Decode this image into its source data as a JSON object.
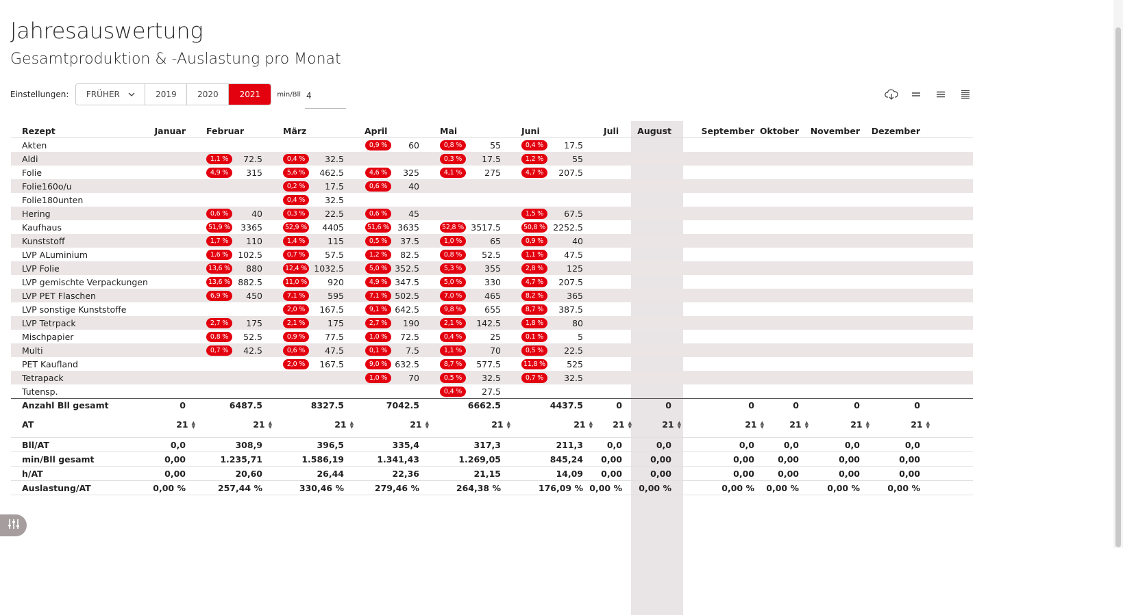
{
  "title": "Jahresauswertung",
  "subtitle": "Gesamtproduktion & -Auslastung pro Monat",
  "settings": {
    "label": "Einstellungen:",
    "dropdown_value": "FRÜHER",
    "years": [
      "2019",
      "2020",
      "2021"
    ],
    "active_year": "2021",
    "min_label": "min/Bll",
    "min_value": "4"
  },
  "icons": [
    "cloud-download-icon",
    "density-compact-icon",
    "density-standard-icon",
    "density-comfortable-icon",
    "tune-icon"
  ],
  "colors": {
    "accent": "#e3000f",
    "stripe": "#ebe5e6",
    "current_month": "#e9e4e5"
  },
  "table": {
    "header_label": "Rezept",
    "months": [
      "Januar",
      "Februar",
      "März",
      "April",
      "Mai",
      "Juni",
      "Juli",
      "August",
      "September",
      "Oktober",
      "November",
      "Dezember"
    ],
    "rows": [
      {
        "name": "Akten",
        "cells": [
          null,
          null,
          null,
          {
            "p": "0,9 %",
            "v": "60"
          },
          {
            "p": "0,8 %",
            "v": "55"
          },
          {
            "p": "0,4 %",
            "v": "17.5"
          }
        ]
      },
      {
        "name": "Aldi",
        "cells": [
          null,
          {
            "p": "1,1 %",
            "v": "72.5"
          },
          {
            "p": "0,4 %",
            "v": "32.5"
          },
          null,
          {
            "p": "0,3 %",
            "v": "17.5"
          },
          {
            "p": "1,2 %",
            "v": "55"
          }
        ]
      },
      {
        "name": "Folie",
        "cells": [
          null,
          {
            "p": "4,9 %",
            "v": "315"
          },
          {
            "p": "5,6 %",
            "v": "462.5"
          },
          {
            "p": "4,6 %",
            "v": "325"
          },
          {
            "p": "4,1 %",
            "v": "275"
          },
          {
            "p": "4,7 %",
            "v": "207.5"
          }
        ]
      },
      {
        "name": "Folie160o/u",
        "cells": [
          null,
          null,
          {
            "p": "0,2 %",
            "v": "17.5"
          },
          {
            "p": "0,6 %",
            "v": "40"
          },
          null,
          null
        ]
      },
      {
        "name": "Folie180unten",
        "cells": [
          null,
          null,
          {
            "p": "0,4 %",
            "v": "32.5"
          },
          null,
          null,
          null
        ]
      },
      {
        "name": "Hering",
        "cells": [
          null,
          {
            "p": "0,6 %",
            "v": "40"
          },
          {
            "p": "0,3 %",
            "v": "22.5"
          },
          {
            "p": "0,6 %",
            "v": "45"
          },
          null,
          {
            "p": "1,5 %",
            "v": "67.5"
          }
        ]
      },
      {
        "name": "Kaufhaus",
        "cells": [
          null,
          {
            "p": "51,9 %",
            "v": "3365"
          },
          {
            "p": "52,9 %",
            "v": "4405"
          },
          {
            "p": "51,6 %",
            "v": "3635"
          },
          {
            "p": "52,8 %",
            "v": "3517.5"
          },
          {
            "p": "50,8 %",
            "v": "2252.5"
          }
        ]
      },
      {
        "name": "Kunststoff",
        "cells": [
          null,
          {
            "p": "1,7 %",
            "v": "110"
          },
          {
            "p": "1,4 %",
            "v": "115"
          },
          {
            "p": "0,5 %",
            "v": "37.5"
          },
          {
            "p": "1,0 %",
            "v": "65"
          },
          {
            "p": "0,9 %",
            "v": "40"
          }
        ]
      },
      {
        "name": "LVP ALuminium",
        "cells": [
          null,
          {
            "p": "1,6 %",
            "v": "102.5"
          },
          {
            "p": "0,7 %",
            "v": "57.5"
          },
          {
            "p": "1,2 %",
            "v": "82.5"
          },
          {
            "p": "0,8 %",
            "v": "52.5"
          },
          {
            "p": "1,1 %",
            "v": "47.5"
          }
        ]
      },
      {
        "name": "LVP Folie",
        "cells": [
          null,
          {
            "p": "13,6 %",
            "v": "880"
          },
          {
            "p": "12,4 %",
            "v": "1032.5"
          },
          {
            "p": "5,0 %",
            "v": "352.5"
          },
          {
            "p": "5,3 %",
            "v": "355"
          },
          {
            "p": "2,8 %",
            "v": "125"
          }
        ]
      },
      {
        "name": "LVP gemischte Verpackungen",
        "cells": [
          null,
          {
            "p": "13,6 %",
            "v": "882.5"
          },
          {
            "p": "11,0 %",
            "v": "920"
          },
          {
            "p": "4,9 %",
            "v": "347.5"
          },
          {
            "p": "5,0 %",
            "v": "330"
          },
          {
            "p": "4,7 %",
            "v": "207.5"
          }
        ]
      },
      {
        "name": "LVP PET Flaschen",
        "cells": [
          null,
          {
            "p": "6,9 %",
            "v": "450"
          },
          {
            "p": "7,1 %",
            "v": "595"
          },
          {
            "p": "7,1 %",
            "v": "502.5"
          },
          {
            "p": "7,0 %",
            "v": "465"
          },
          {
            "p": "8,2 %",
            "v": "365"
          }
        ]
      },
      {
        "name": "LVP sonstige Kunststoffe",
        "cells": [
          null,
          null,
          {
            "p": "2,0 %",
            "v": "167.5"
          },
          {
            "p": "9,1 %",
            "v": "642.5"
          },
          {
            "p": "9,8 %",
            "v": "655"
          },
          {
            "p": "8,7 %",
            "v": "387.5"
          }
        ]
      },
      {
        "name": "LVP Tetrpack",
        "cells": [
          null,
          {
            "p": "2,7 %",
            "v": "175"
          },
          {
            "p": "2,1 %",
            "v": "175"
          },
          {
            "p": "2,7 %",
            "v": "190"
          },
          {
            "p": "2,1 %",
            "v": "142.5"
          },
          {
            "p": "1,8 %",
            "v": "80"
          }
        ]
      },
      {
        "name": "Mischpapier",
        "cells": [
          null,
          {
            "p": "0,8 %",
            "v": "52.5"
          },
          {
            "p": "0,9 %",
            "v": "77.5"
          },
          {
            "p": "1,0 %",
            "v": "72.5"
          },
          {
            "p": "0,4 %",
            "v": "25"
          },
          {
            "p": "0,1 %",
            "v": "5"
          }
        ]
      },
      {
        "name": "Multi",
        "cells": [
          null,
          {
            "p": "0,7 %",
            "v": "42.5"
          },
          {
            "p": "0,6 %",
            "v": "47.5"
          },
          {
            "p": "0,1 %",
            "v": "7.5"
          },
          {
            "p": "1,1 %",
            "v": "70"
          },
          {
            "p": "0,5 %",
            "v": "22.5"
          }
        ]
      },
      {
        "name": "PET Kaufland",
        "cells": [
          null,
          null,
          {
            "p": "2,0 %",
            "v": "167.5"
          },
          {
            "p": "9,0 %",
            "v": "632.5"
          },
          {
            "p": "8,7 %",
            "v": "577.5"
          },
          {
            "p": "11,8 %",
            "v": "525"
          }
        ]
      },
      {
        "name": "Tetrapack",
        "cells": [
          null,
          null,
          null,
          {
            "p": "1,0 %",
            "v": "70"
          },
          {
            "p": "0,5 %",
            "v": "32.5"
          },
          {
            "p": "0,7 %",
            "v": "32.5"
          }
        ]
      },
      {
        "name": "Tutensp.",
        "cells": [
          null,
          null,
          null,
          null,
          {
            "p": "0,4 %",
            "v": "27.5"
          },
          null
        ]
      }
    ],
    "summary": [
      {
        "label": "Anzahl Bll gesamt",
        "type": "sum",
        "values": [
          "0",
          "6487.5",
          "8327.5",
          "7042.5",
          "6662.5",
          "4437.5",
          "0",
          "0",
          "0",
          "0",
          "0",
          "0"
        ]
      },
      {
        "label": "AT",
        "type": "at",
        "values": [
          "21",
          "21",
          "21",
          "21",
          "21",
          "21",
          "21",
          "21",
          "21",
          "21",
          "21",
          "21"
        ]
      },
      {
        "label": "Bll/AT",
        "type": "foot",
        "values": [
          "0,0",
          "308,9",
          "396,5",
          "335,4",
          "317,3",
          "211,3",
          "0,0",
          "0,0",
          "0,0",
          "0,0",
          "0,0",
          "0,0"
        ]
      },
      {
        "label": "min/Bll gesamt",
        "type": "foot",
        "values": [
          "0,00",
          "1.235,71",
          "1.586,19",
          "1.341,43",
          "1.269,05",
          "845,24",
          "0,00",
          "0,00",
          "0,00",
          "0,00",
          "0,00",
          "0,00"
        ]
      },
      {
        "label": "h/AT",
        "type": "foot",
        "values": [
          "0,00",
          "20,60",
          "26,44",
          "22,36",
          "21,15",
          "14,09",
          "0,00",
          "0,00",
          "0,00",
          "0,00",
          "0,00",
          "0,00"
        ]
      },
      {
        "label": "Auslastung/AT",
        "type": "foot",
        "values": [
          "0,00 %",
          "257,44 %",
          "330,46 %",
          "279,46 %",
          "264,38 %",
          "176,09 %",
          "0,00 %",
          "0,00 %",
          "0,00 %",
          "0,00 %",
          "0,00 %",
          "0,00 %"
        ]
      }
    ]
  }
}
